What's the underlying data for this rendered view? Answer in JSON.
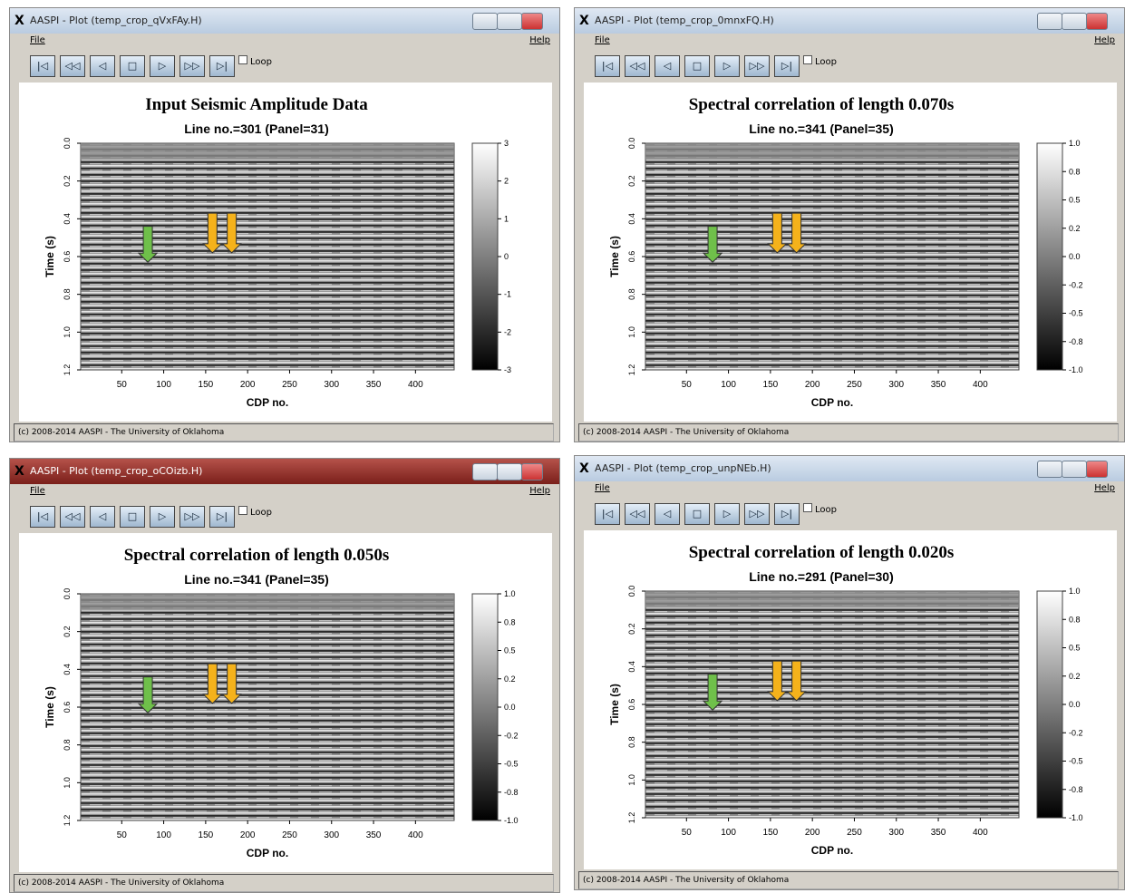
{
  "common": {
    "menu_file": "File",
    "menu_help": "Help",
    "loop": "Loop",
    "y_label": "Time (s)",
    "x_label": "CDP no.",
    "yticks": [
      "0.0",
      "0.2",
      "0.4",
      "0.6",
      "0.8",
      "1.0",
      "1.2"
    ],
    "xticks": [
      "50",
      "100",
      "150",
      "200",
      "250",
      "300",
      "350",
      "400"
    ],
    "footer": "(c) 2008-2014 AASPI - The University of Oklahoma"
  },
  "windows": [
    {
      "title": "AASPI - Plot (temp_crop_qVxFAy.H)",
      "plot_title": "Input Seismic Amplitude Data",
      "subtitle": "Line no.=301 (Panel=31)",
      "colorbar": [
        "3",
        "2",
        "1",
        "0",
        "-1",
        "-2",
        "-3"
      ]
    },
    {
      "title": "AASPI - Plot (temp_crop_0mnxFQ.H)",
      "plot_title": "Spectral correlation of length  0.070s",
      "subtitle": "Line no.=341 (Panel=35)",
      "colorbar": [
        "1.0",
        "0.8",
        "0.5",
        "0.2",
        "0.0",
        "-0.2",
        "-0.5",
        "-0.8",
        "-1.0"
      ]
    },
    {
      "title": "AASPI - Plot (temp_crop_oCOizb.H)",
      "plot_title": "Spectral correlation of length  0.050s",
      "subtitle": "Line no.=341 (Panel=35)",
      "colorbar": [
        "1.0",
        "0.8",
        "0.5",
        "0.2",
        "0.0",
        "-0.2",
        "-0.5",
        "-0.8",
        "-1.0"
      ]
    },
    {
      "title": "AASPI - Plot (temp_crop_unpNEb.H)",
      "plot_title": "Spectral correlation of length  0.020s",
      "subtitle": "Line no.=291 (Panel=30)",
      "colorbar": [
        "1.0",
        "0.8",
        "0.5",
        "0.2",
        "0.0",
        "-0.2",
        "-0.5",
        "-0.8",
        "-1.0"
      ]
    }
  ]
}
